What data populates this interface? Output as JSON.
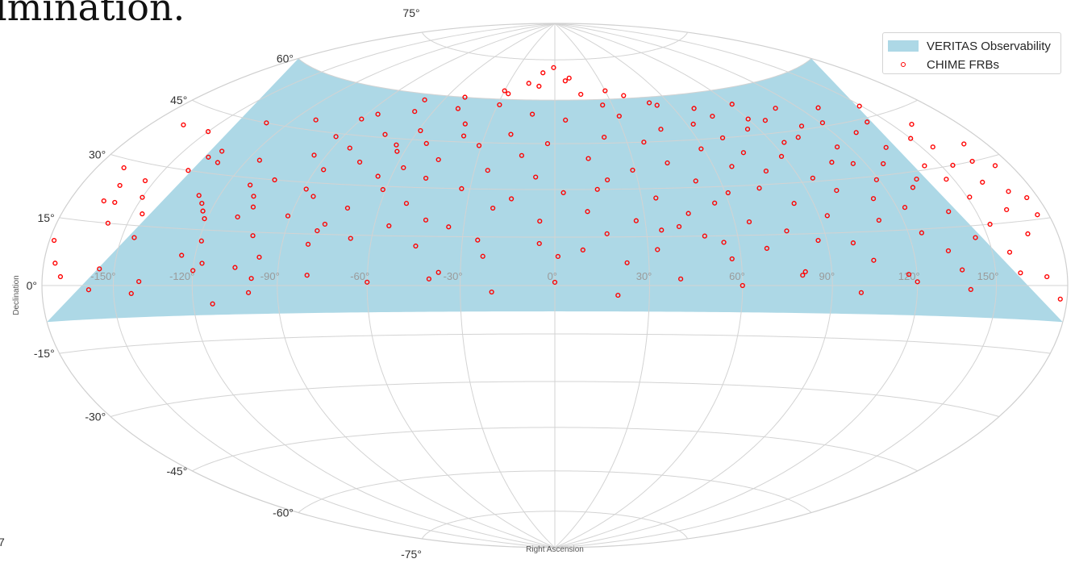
{
  "caption_fragment": "lmination.",
  "corner_glyph": "7",
  "colors": {
    "observability_fill": "#add8e6",
    "frb_marker": "#ff0000",
    "grid": "#d3d3d3"
  },
  "chart_data": {
    "type": "scatter",
    "projection": "hammer",
    "title": "",
    "xlabel": "Right Ascension",
    "ylabel": "Declination",
    "xlim": [
      -180,
      180
    ],
    "ylim": [
      -90,
      90
    ],
    "grid": true,
    "legend_position": "top-right",
    "ra_tick_labels": [
      "-150°",
      "-120°",
      "-90°",
      "-60°",
      "-30°",
      "0°",
      "30°",
      "60°",
      "90°",
      "120°",
      "150°"
    ],
    "dec_tick_labels": [
      "-75°",
      "-60°",
      "-45°",
      "-30°",
      "-15°",
      "0°",
      "15°",
      "30°",
      "45°",
      "60°",
      "75°"
    ],
    "series": [
      {
        "name": "VERITAS Observability",
        "kind": "band",
        "dec_min": -8,
        "dec_max": 60
      },
      {
        "name": "CHIME FRBs",
        "kind": "points",
        "points": [
          [
            -178,
            10
          ],
          [
            -172,
            2
          ],
          [
            -168,
            28
          ],
          [
            -165,
            20
          ],
          [
            -163,
            24
          ],
          [
            -160,
            20
          ],
          [
            -158,
            15
          ],
          [
            -156,
            4
          ],
          [
            -154,
            26
          ],
          [
            -150,
            22
          ],
          [
            -146,
            18
          ],
          [
            -143,
            -2
          ],
          [
            -140,
            30
          ],
          [
            -137,
            34
          ],
          [
            -134,
            36
          ],
          [
            -131,
            33
          ],
          [
            -128,
            24
          ],
          [
            -125,
            22
          ],
          [
            -123,
            20
          ],
          [
            -121,
            18
          ],
          [
            -119,
            12
          ],
          [
            -117,
            6
          ],
          [
            -115,
            35
          ],
          [
            -113,
            -5
          ],
          [
            -111,
            28
          ],
          [
            -109,
            19
          ],
          [
            -107,
            25
          ],
          [
            -105,
            22
          ],
          [
            -103,
            30
          ],
          [
            -101,
            14
          ],
          [
            -99,
            2
          ],
          [
            -97,
            8
          ],
          [
            -95,
            38
          ],
          [
            -93,
            44
          ],
          [
            -91,
            20
          ],
          [
            -89,
            28
          ],
          [
            -87,
            34
          ],
          [
            -85,
            52
          ],
          [
            -83,
            41
          ],
          [
            -81,
            12
          ],
          [
            -79,
            16
          ],
          [
            -77,
            18
          ],
          [
            -75,
            37
          ],
          [
            -73,
            46
          ],
          [
            -71,
            23
          ],
          [
            -69,
            54
          ],
          [
            -67,
            14
          ],
          [
            -65,
            33
          ],
          [
            -63,
            41
          ],
          [
            -61,
            29
          ],
          [
            -59,
            48
          ],
          [
            -57,
            36
          ],
          [
            -55,
            18
          ],
          [
            -53,
            44
          ],
          [
            -51,
            25
          ],
          [
            -49,
            56
          ],
          [
            -47,
            33
          ],
          [
            -45,
            39
          ],
          [
            -43,
            20
          ],
          [
            -41,
            51
          ],
          [
            -39,
            47
          ],
          [
            -37,
            4
          ],
          [
            -35,
            18
          ],
          [
            -33,
            30
          ],
          [
            -31,
            44
          ],
          [
            -29,
            58
          ],
          [
            -27,
            62
          ],
          [
            -25,
            36
          ],
          [
            -23,
            9
          ],
          [
            -21,
            24
          ],
          [
            -19,
            48
          ],
          [
            -17,
            66
          ],
          [
            -15,
            27
          ],
          [
            -13,
            41
          ],
          [
            -11,
            55
          ],
          [
            -9,
            70
          ],
          [
            -7,
            34
          ],
          [
            -5,
            13
          ],
          [
            -3,
            45
          ],
          [
            -1,
            72
          ],
          [
            1,
            9
          ],
          [
            3,
            29
          ],
          [
            5,
            53
          ],
          [
            7,
            67
          ],
          [
            9,
            11
          ],
          [
            11,
            23
          ],
          [
            13,
            40
          ],
          [
            15,
            62
          ],
          [
            17,
            16
          ],
          [
            19,
            33
          ],
          [
            21,
            47
          ],
          [
            23,
            7
          ],
          [
            25,
            58
          ],
          [
            27,
            20
          ],
          [
            29,
            36
          ],
          [
            31,
            54
          ],
          [
            33,
            11
          ],
          [
            35,
            27
          ],
          [
            37,
            45
          ],
          [
            39,
            61
          ],
          [
            41,
            18
          ],
          [
            43,
            38
          ],
          [
            45,
            22
          ],
          [
            47,
            49
          ],
          [
            49,
            15
          ],
          [
            51,
            32
          ],
          [
            53,
            57
          ],
          [
            55,
            25
          ],
          [
            57,
            8
          ],
          [
            59,
            42
          ],
          [
            61,
            28
          ],
          [
            63,
            50
          ],
          [
            65,
            19
          ],
          [
            67,
            36
          ],
          [
            69,
            11
          ],
          [
            71,
            45
          ],
          [
            73,
            29
          ],
          [
            75,
            52
          ],
          [
            77,
            16
          ],
          [
            79,
            34
          ],
          [
            81,
            4
          ],
          [
            83,
            24
          ],
          [
            85,
            47
          ],
          [
            87,
            13
          ],
          [
            89,
            38
          ],
          [
            91,
            55
          ],
          [
            93,
            20
          ],
          [
            95,
            31
          ],
          [
            97,
            49
          ],
          [
            99,
            12
          ],
          [
            101,
            27
          ],
          [
            103,
            43
          ],
          [
            105,
            7
          ],
          [
            107,
            35
          ],
          [
            109,
            52
          ],
          [
            111,
            18
          ],
          [
            113,
            24
          ],
          [
            115,
            39
          ],
          [
            117,
            3
          ],
          [
            119,
            29
          ],
          [
            121,
            46
          ],
          [
            123,
            21
          ],
          [
            125,
            14
          ],
          [
            127,
            33
          ],
          [
            129,
            50
          ],
          [
            131,
            26
          ],
          [
            133,
            9
          ],
          [
            135,
            37
          ],
          [
            137,
            4
          ],
          [
            139,
            19
          ],
          [
            141,
            44
          ],
          [
            143,
            31
          ],
          [
            145,
            12
          ],
          [
            147,
            27
          ],
          [
            149,
            48
          ],
          [
            151,
            22
          ],
          [
            153,
            15
          ],
          [
            155,
            35
          ],
          [
            157,
            8
          ],
          [
            159,
            41
          ],
          [
            161,
            25
          ],
          [
            163,
            18
          ],
          [
            165,
            30
          ],
          [
            167,
            12
          ],
          [
            169,
            22
          ],
          [
            171,
            2
          ],
          [
            173,
            28
          ],
          [
            175,
            16
          ],
          [
            177,
            -3
          ],
          [
            -160,
            -1
          ],
          [
            -140,
            1
          ],
          [
            -120,
            4
          ],
          [
            -100,
            -2
          ],
          [
            -80,
            3
          ],
          [
            -60,
            1
          ],
          [
            -40,
            2
          ],
          [
            -20,
            -2
          ],
          [
            0,
            1
          ],
          [
            20,
            -3
          ],
          [
            40,
            2
          ],
          [
            60,
            0
          ],
          [
            80,
            3
          ],
          [
            100,
            -2
          ],
          [
            120,
            1
          ],
          [
            140,
            -1
          ],
          [
            160,
            3
          ],
          [
            -175,
            5
          ],
          [
            -150,
            40
          ],
          [
            -130,
            45
          ],
          [
            -110,
            48
          ],
          [
            -90,
            50
          ],
          [
            -70,
            58
          ],
          [
            -50,
            60
          ],
          [
            -30,
            63
          ],
          [
            -10,
            65
          ],
          [
            10,
            68
          ],
          [
            30,
            63
          ],
          [
            50,
            58
          ],
          [
            70,
            55
          ],
          [
            90,
            50
          ],
          [
            110,
            46
          ],
          [
            130,
            42
          ],
          [
            150,
            38
          ],
          [
            170,
            34
          ],
          [
            -165,
            40
          ],
          [
            -145,
            12
          ],
          [
            -125,
            8
          ],
          [
            -105,
            5
          ],
          [
            -85,
            26
          ],
          [
            -65,
            43
          ],
          [
            -45,
            12
          ],
          [
            -25,
            14
          ],
          [
            -5,
            20
          ],
          [
            15,
            30
          ],
          [
            35,
            17
          ],
          [
            55,
            13
          ],
          [
            75,
            40
          ],
          [
            95,
            42
          ],
          [
            115,
            34
          ],
          [
            135,
            28
          ],
          [
            155,
            30
          ],
          [
            175,
            20
          ]
        ]
      }
    ]
  }
}
